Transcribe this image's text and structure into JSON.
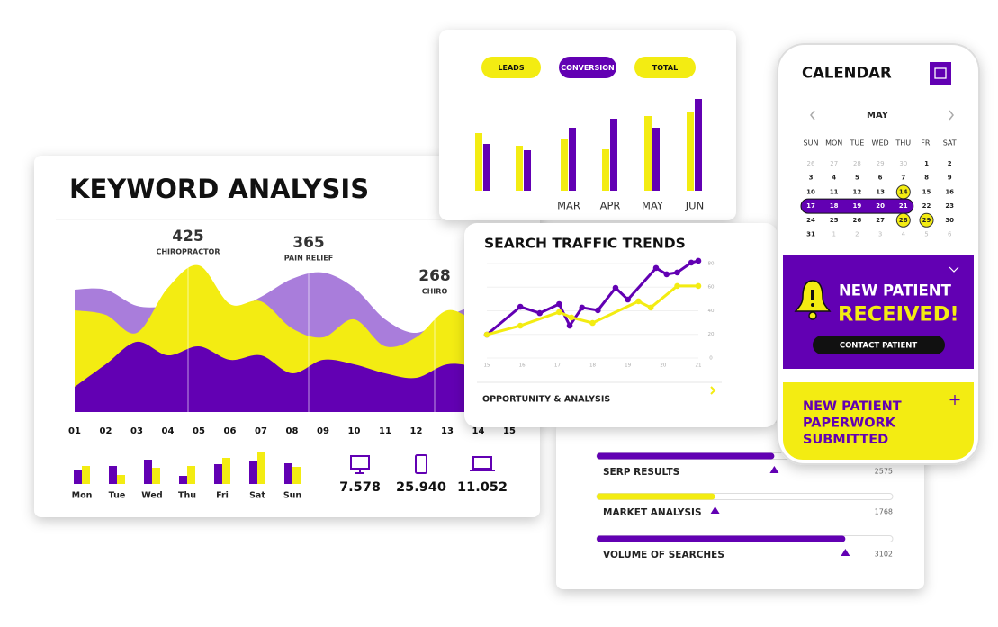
{
  "keyword_analysis": {
    "title": "KEYWORD ANALYSIS",
    "highlights": [
      {
        "value": 425,
        "label": "CHIROPRACTOR"
      },
      {
        "value": 365,
        "label": "PAIN RELIEF"
      },
      {
        "value": 268,
        "label": "CHIRO"
      }
    ],
    "area_chart": {
      "type": "area",
      "categories": [
        "01",
        "02",
        "03",
        "04",
        "05",
        "06",
        "07",
        "08",
        "09",
        "10",
        "11",
        "12",
        "13",
        "14",
        "15"
      ],
      "ylim": [
        0,
        170
      ],
      "series": [
        {
          "color": "#a97ddb",
          "values": [
            136,
            136,
            118,
            118,
            128,
            113,
            128,
            148,
            155,
            138,
            103,
            88,
            106,
            118,
            110
          ]
        },
        {
          "color": "#f3ec12",
          "values": [
            113,
            108,
            88,
            138,
            163,
            120,
            123,
            93,
            83,
            103,
            73,
            83,
            113,
            100,
            95
          ]
        },
        {
          "color": "#6200b3",
          "values": [
            28,
            53,
            78,
            63,
            73,
            58,
            63,
            43,
            58,
            53,
            43,
            38,
            53,
            50,
            45
          ]
        }
      ]
    },
    "weekly_chart": {
      "type": "bar",
      "categories": [
        "Mon",
        "Tue",
        "Wed",
        "Thu",
        "Fri",
        "Sat",
        "Sun"
      ],
      "ylim": [
        0,
        40
      ],
      "series": [
        {
          "color": "#6200b3",
          "values": [
            16,
            20,
            27,
            9,
            22,
            26,
            23
          ]
        },
        {
          "color": "#f3ec12",
          "values": [
            20,
            10,
            18,
            20,
            29,
            35,
            19
          ]
        }
      ]
    },
    "devices": [
      {
        "icon": "desktop",
        "value": "7.578"
      },
      {
        "icon": "tablet",
        "value": "25.940"
      },
      {
        "icon": "laptop",
        "value": "11.052"
      }
    ]
  },
  "performance": {
    "buttons": [
      {
        "label": "LEADS",
        "color": "#f3ec12"
      },
      {
        "label": "CONVERSION",
        "color": "#6200b3"
      },
      {
        "label": "TOTAL",
        "color": "#f3ec12"
      }
    ],
    "chart": {
      "type": "bar",
      "categories": [
        null,
        null,
        "MAR",
        "APR",
        "MAY",
        "JUN"
      ],
      "ylim": [
        0,
        110
      ],
      "series": [
        {
          "color": "#f3ec12",
          "values": [
            64,
            50,
            57,
            46,
            83,
            87
          ]
        },
        {
          "color": "#6200b3",
          "values": [
            52,
            45,
            70,
            80,
            70,
            102
          ]
        }
      ]
    }
  },
  "search_traffic": {
    "title": "SEARCH TRAFFIC TRENDS",
    "chart": {
      "type": "line",
      "xlim": [
        15,
        21
      ],
      "xticks": [
        15,
        16,
        17,
        18,
        19,
        20,
        21
      ],
      "ylim": [
        0,
        85
      ],
      "yticks": [
        0,
        20,
        40,
        60,
        80
      ],
      "series": [
        {
          "color": "#6200b3",
          "x": [
            15,
            15.95,
            16.5,
            17.05,
            17.35,
            17.7,
            18.15,
            18.65,
            19,
            19.8,
            20.1,
            20.4,
            20.8,
            21
          ],
          "values": [
            19.8,
            43.4,
            38,
            45.7,
            27.4,
            42.7,
            40.4,
            59.4,
            49.5,
            76.2,
            70.9,
            72.4,
            80.8,
            82.3
          ]
        },
        {
          "color": "#f3ec12",
          "x": [
            15,
            15.95,
            17.05,
            17.4,
            18,
            19.3,
            19.65,
            20.4,
            21
          ],
          "values": [
            19.8,
            27.4,
            38.9,
            34.3,
            29.7,
            48,
            42.7,
            61,
            61
          ]
        }
      ]
    },
    "footer": "OPPORTUNITY & ANALYSIS"
  },
  "rankings": {
    "scale": [
      0,
      100
    ],
    "items": [
      {
        "label": "SERP RESULTS",
        "value": 2575,
        "progress": 60,
        "color": "#6200b3"
      },
      {
        "label": "MARKET ANALYSIS",
        "value": 1768,
        "progress": 40,
        "color": "#f3ec12"
      },
      {
        "label": "VOLUME OF SEARCHES",
        "value": 3102,
        "progress": 84,
        "color": "#6200b3"
      }
    ]
  },
  "calendar": {
    "title": "CALENDAR",
    "month": "MAY",
    "weekdays": [
      "SUN",
      "MON",
      "TUE",
      "WED",
      "THU",
      "FRI",
      "SAT"
    ],
    "weeks": [
      [
        26,
        27,
        28,
        29,
        30,
        1,
        2
      ],
      [
        3,
        4,
        5,
        6,
        7,
        8,
        9
      ],
      [
        10,
        11,
        12,
        13,
        14,
        15,
        16
      ],
      [
        17,
        18,
        19,
        20,
        21,
        22,
        23
      ],
      [
        24,
        25,
        26,
        27,
        28,
        29,
        30
      ],
      [
        31,
        1,
        2,
        3,
        4,
        5,
        6
      ]
    ],
    "marked_days": [
      14,
      28,
      29
    ],
    "selected_range": [
      17,
      21
    ],
    "notice": {
      "line1": "NEW PATIENT",
      "line2": "RECEIVED!",
      "button": "CONTACT PATIENT"
    },
    "paperwork": [
      "NEW PATIENT",
      "PAPERWORK",
      "SUBMITTED"
    ]
  }
}
